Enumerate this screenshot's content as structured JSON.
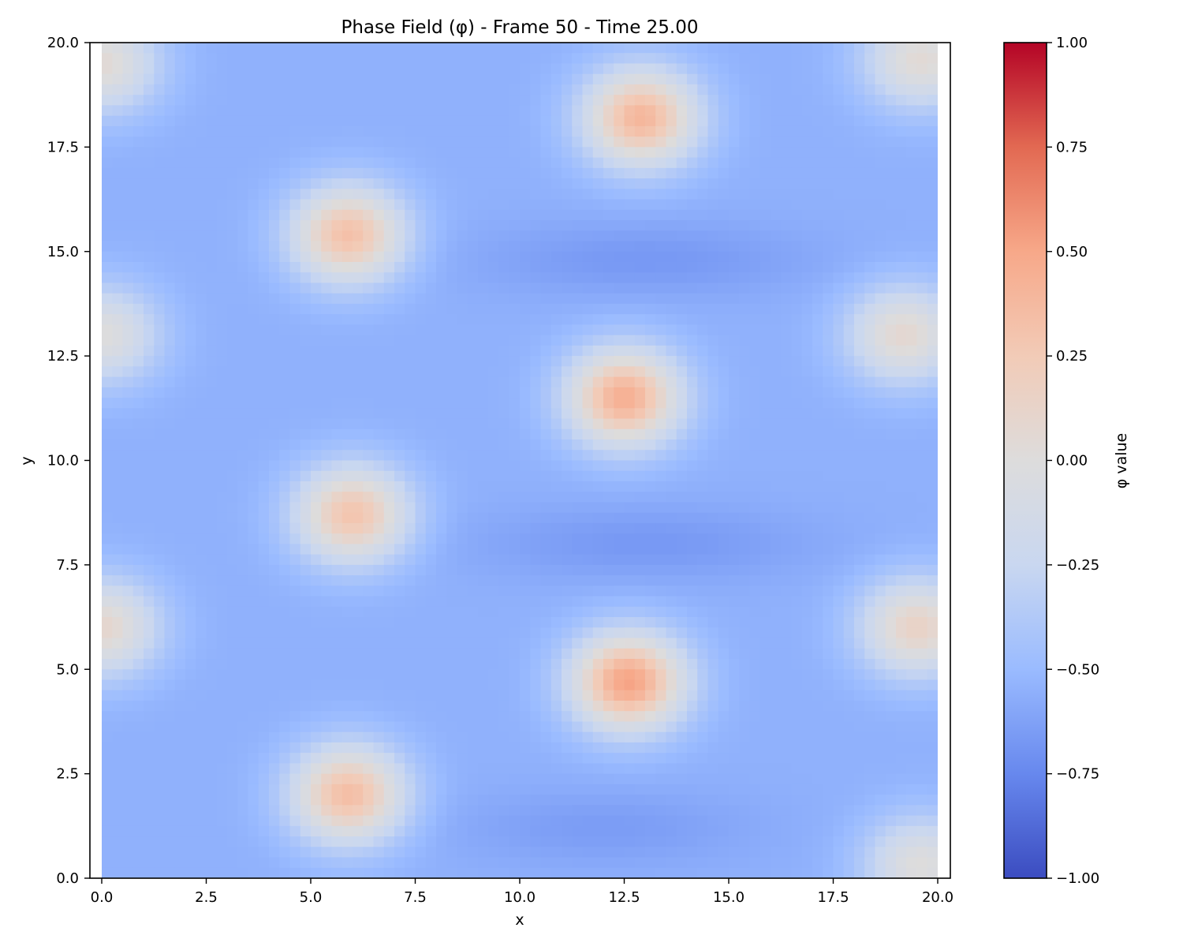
{
  "chart_data": {
    "type": "heatmap",
    "title": "Phase Field (φ) - Frame 50 - Time 25.00",
    "xlabel": "x",
    "ylabel": "y",
    "xlim": [
      0,
      20
    ],
    "ylim": [
      0,
      20
    ],
    "x_ticks": [
      "0.0",
      "2.5",
      "5.0",
      "7.5",
      "10.0",
      "12.5",
      "15.0",
      "17.5",
      "20.0"
    ],
    "y_ticks": [
      "0.0",
      "2.5",
      "5.0",
      "7.5",
      "10.0",
      "12.5",
      "15.0",
      "17.5",
      "20.0"
    ],
    "colormap": "coolwarm",
    "color_stops": [
      "#3b4cc0",
      "#6788ee",
      "#9abbff",
      "#c9d7f0",
      "#dddcdc",
      "#f2cbb7",
      "#f7a889",
      "#e26952",
      "#b40426"
    ],
    "colorbar": {
      "label": "φ value",
      "range": [
        -1.0,
        1.0
      ],
      "ticks": [
        "1.00",
        "0.75",
        "0.50",
        "0.25",
        "0.00",
        "−0.25",
        "−0.50",
        "−0.75",
        "−1.00"
      ]
    },
    "background_level": -0.55,
    "blobs": [
      {
        "x": 5.9,
        "y": 2.0,
        "peak": 0.35
      },
      {
        "x": 6.0,
        "y": 8.7,
        "peak": 0.3
      },
      {
        "x": 5.9,
        "y": 15.4,
        "peak": 0.33
      },
      {
        "x": 12.6,
        "y": 4.7,
        "peak": 0.52
      },
      {
        "x": 12.5,
        "y": 11.5,
        "peak": 0.45
      },
      {
        "x": 12.9,
        "y": 18.2,
        "peak": 0.4
      },
      {
        "x": 0.0,
        "y": 6.0,
        "peak": 0.1
      },
      {
        "x": 0.0,
        "y": 13.0,
        "peak": 0.0
      },
      {
        "x": 0.0,
        "y": 19.5,
        "peak": 0.05
      },
      {
        "x": 19.5,
        "y": 6.0,
        "peak": 0.15
      },
      {
        "x": 19.2,
        "y": 13.0,
        "peak": 0.08
      },
      {
        "x": 19.6,
        "y": 19.6,
        "peak": 0.05
      },
      {
        "x": 19.6,
        "y": 0.3,
        "peak": 0.0
      }
    ]
  }
}
